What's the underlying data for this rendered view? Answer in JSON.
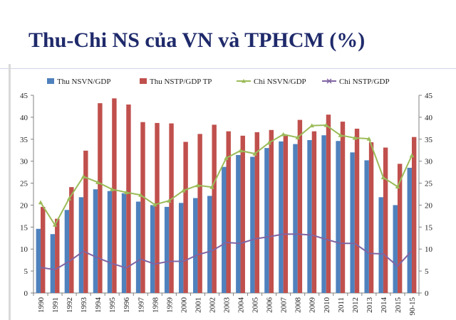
{
  "slide": {
    "title": "Thu-Chi NS của VN và TPHCM (%)"
  },
  "colors": {
    "thu_nsvn": "#4f81bd",
    "thu_nstp": "#c0504d",
    "chi_nsvn": "#9bbb59",
    "chi_nstp": "#8064a2",
    "title": "#1f2a6b"
  },
  "chart_data": {
    "type": "bar",
    "title": "",
    "xlabel": "",
    "ylabel": "",
    "ylim": [
      0,
      45
    ],
    "yticks": [
      0,
      5,
      10,
      15,
      20,
      25,
      30,
      35,
      40,
      45
    ],
    "secondary_ylim": [
      0,
      45
    ],
    "grid": false,
    "legend_position": "top",
    "categories": [
      "1990",
      "1991",
      "1992",
      "1993",
      "1994",
      "1995",
      "1996",
      "1997",
      "1998",
      "1999",
      "2000",
      "2001",
      "2002",
      "2003",
      "2004",
      "2005",
      "2006",
      "2007",
      "2008",
      "2009",
      "2010",
      "2011",
      "2012",
      "2013",
      "2014",
      "2015",
      "90-15"
    ],
    "series": [
      {
        "name": "Thu NSVN/GDP",
        "kind": "bar",
        "values": [
          14.6,
          13.4,
          18.9,
          21.8,
          23.6,
          23.2,
          22.7,
          20.8,
          20.0,
          19.6,
          20.5,
          21.6,
          22.1,
          28.7,
          31.4,
          31.0,
          33.0,
          34.5,
          33.9,
          34.8,
          35.9,
          34.6,
          32.0,
          30.2,
          21.8,
          20.0,
          28.5
        ]
      },
      {
        "name": "Thu NSTP/GDP TP",
        "kind": "bar",
        "values": [
          19.6,
          16.9,
          24.1,
          32.4,
          43.2,
          44.3,
          42.9,
          38.9,
          38.7,
          38.6,
          34.4,
          36.2,
          38.3,
          36.8,
          35.8,
          36.6,
          37.1,
          35.8,
          39.4,
          36.8,
          40.6,
          39.0,
          37.4,
          34.3,
          33.1,
          29.4,
          35.5
        ]
      },
      {
        "name": "Chi NSVN/GDP",
        "kind": "line",
        "values": [
          20.6,
          15.5,
          21.5,
          26.5,
          25.2,
          23.6,
          22.9,
          22.3,
          20.1,
          21.0,
          23.3,
          24.5,
          24.1,
          30.7,
          32.4,
          31.7,
          34.2,
          36.1,
          35.4,
          38.1,
          38.2,
          35.9,
          35.3,
          35.1,
          26.3,
          24.2,
          31.3
        ]
      },
      {
        "name": "Chi NSTP/GDP",
        "kind": "line",
        "values": [
          5.8,
          5.3,
          7.2,
          9.5,
          8.0,
          6.7,
          5.7,
          7.7,
          6.6,
          7.2,
          7.2,
          8.7,
          9.6,
          11.5,
          11.3,
          12.3,
          12.8,
          13.4,
          13.4,
          13.2,
          12.2,
          11.3,
          11.3,
          9.0,
          8.9,
          6.1,
          9.6
        ]
      }
    ]
  }
}
